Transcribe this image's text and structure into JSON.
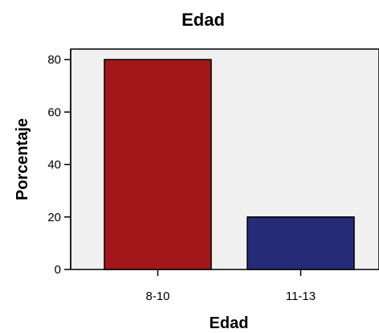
{
  "chart_data": {
    "type": "bar",
    "title": "Edad",
    "xlabel": "Edad",
    "ylabel": "Porcentaje",
    "categories": [
      "8-10",
      "11-13"
    ],
    "values": [
      80,
      20
    ],
    "ylim": [
      0,
      84
    ],
    "yticks": [
      0,
      20,
      40,
      60,
      80
    ],
    "grid": false,
    "colors": {
      "plot_background": "#F0F0F0",
      "bars": [
        "#A3161A",
        "#272A77"
      ],
      "bar_outline": "#000000"
    }
  }
}
